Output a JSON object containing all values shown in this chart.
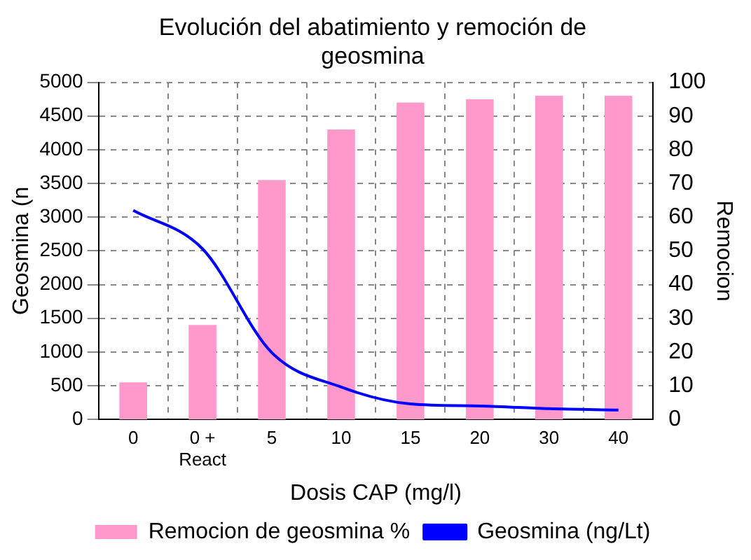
{
  "chart_data": {
    "type": "bar",
    "title": "Evolución del abatimiento y remoción de geosmina",
    "xlabel": "Dosis CAP (mg/l)",
    "ylabel": "Geosmina (n",
    "y2label": "Remocion",
    "categories": [
      "0",
      "0 +\nReact",
      "5",
      "10",
      "15",
      "20",
      "30",
      "40"
    ],
    "series": [
      {
        "name": "Remocion de geosmina %",
        "axis": "y2",
        "color": "#ff99cc",
        "values": [
          11,
          28,
          71,
          86,
          94,
          95,
          96,
          96
        ]
      },
      {
        "name": "Geosmina (ng/Lt)",
        "type": "line",
        "axis": "y",
        "color": "#0000ff",
        "marker": "none",
        "values": [
          3100,
          2530,
          990,
          480,
          230,
          200,
          160,
          140
        ]
      }
    ],
    "ylim": [
      0,
      5000
    ],
    "yticks": [
      0,
      500,
      1000,
      1500,
      2000,
      2500,
      3000,
      3500,
      4000,
      4500,
      5000
    ],
    "y2lim": [
      0,
      100
    ],
    "y2ticks": [
      0,
      10,
      20,
      30,
      40,
      50,
      60,
      70,
      80,
      90,
      100
    ],
    "grid": true,
    "legend": "bottom"
  }
}
